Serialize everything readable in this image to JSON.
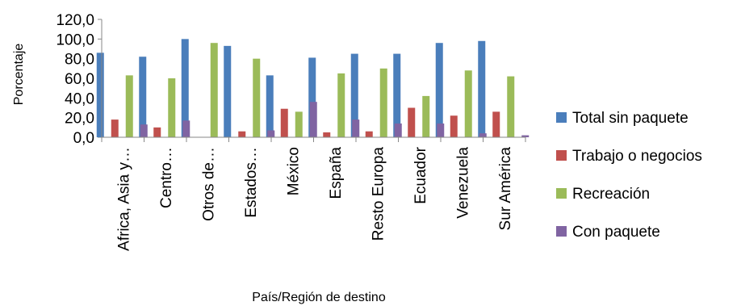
{
  "chart_data": {
    "type": "bar",
    "xlabel": "País/Región de destino",
    "ylabel": "Porcentaje",
    "ylim": [
      0,
      120
    ],
    "yticks": [
      "0,0",
      "20,0",
      "40,0",
      "60,0",
      "80,0",
      "100,0",
      "120,0"
    ],
    "grid": false,
    "legend_position": "right",
    "categories": [
      "Africa, Asia y…",
      "Centro…",
      "Otros de…",
      "Estados…",
      "México",
      "España",
      "Resto Europa",
      "Ecuador",
      "Venezuela",
      "Sur América"
    ],
    "series": [
      {
        "name": "Total sin paquete",
        "color": "#4a7ebb",
        "values": [
          86,
          82,
          100,
          93,
          63,
          81,
          85,
          85,
          96,
          98
        ]
      },
      {
        "name": "Trabajo o negocios",
        "color": "#c0504d",
        "values": [
          18,
          10,
          0,
          6,
          29,
          5,
          6,
          30,
          22,
          26
        ]
      },
      {
        "name": "Recreación",
        "color": "#9bbb59",
        "values": [
          63,
          60,
          96,
          80,
          26,
          65,
          70,
          42,
          68,
          62
        ]
      },
      {
        "name": "Con paquete",
        "color": "#8064a2",
        "values": [
          13,
          17,
          0,
          7,
          36,
          18,
          14,
          14,
          4,
          2
        ]
      }
    ]
  }
}
